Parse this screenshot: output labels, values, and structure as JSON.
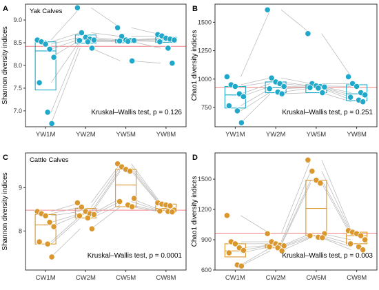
{
  "figure": {
    "background": "#ffffff"
  },
  "chart_data": [
    {
      "panel_label": "A",
      "type": "box",
      "annotation": "Yak Calves",
      "ylabel": "Shannon diversity indices",
      "xlabel": "",
      "categories": [
        "YW1M",
        "YW2M",
        "YW5M",
        "YW8M"
      ],
      "yticks": [
        7.0,
        7.5,
        8.0,
        8.5,
        9.0
      ],
      "ytick_labels": [
        "7.0",
        "7.5",
        "8.0",
        "8.5",
        "9.0"
      ],
      "ylim": [
        6.65,
        9.35
      ],
      "color": "#1FA8C9",
      "reference_line": 8.42,
      "reference_color": "#F08080",
      "boxes": [
        {
          "q1": 7.46,
          "median": 8.32,
          "q3": 8.52,
          "whisker_low": 7.46,
          "whisker_high": 8.56
        },
        {
          "q1": 8.49,
          "median": 8.58,
          "q3": 8.67,
          "whisker_low": 8.49,
          "whisker_high": 8.67
        },
        {
          "q1": 8.5,
          "median": 8.55,
          "q3": 8.57,
          "whisker_low": 8.5,
          "whisker_high": 8.57
        },
        {
          "q1": 8.51,
          "median": 8.56,
          "q3": 8.62,
          "whisker_low": 8.51,
          "whisker_high": 8.62
        }
      ],
      "points": [
        [
          8.56,
          8.52,
          8.47,
          8.36,
          8.18,
          7.62,
          6.97,
          6.72
        ],
        [
          9.27,
          8.72,
          8.62,
          8.58,
          8.56,
          8.55,
          8.52,
          8.38
        ],
        [
          8.83,
          8.64,
          8.56,
          8.55,
          8.55,
          8.54,
          8.53,
          8.1
        ],
        [
          8.68,
          8.65,
          8.6,
          8.58,
          8.56,
          8.52,
          8.38,
          8.05
        ]
      ],
      "stat_text": "Kruskal–Wallis test, p = 0.126"
    },
    {
      "panel_label": "B",
      "type": "box",
      "annotation": "",
      "ylabel": "Chao1 diversity indices",
      "xlabel": "",
      "categories": [
        "YW1M",
        "YW2M",
        "YW5M",
        "YW8M"
      ],
      "yticks": [
        750,
        1000,
        1250,
        1500
      ],
      "ytick_labels": [
        "750",
        "1000",
        "1250",
        "1500"
      ],
      "ylim": [
        580,
        1660
      ],
      "color": "#1FA8C9",
      "reference_line": 925,
      "reference_color": "#F08080",
      "boxes": [
        {
          "q1": 745,
          "median": 860,
          "q3": 935,
          "whisker_low": 745,
          "whisker_high": 935
        },
        {
          "q1": 880,
          "median": 925,
          "q3": 975,
          "whisker_low": 880,
          "whisker_high": 975
        },
        {
          "q1": 880,
          "median": 930,
          "q3": 950,
          "whisker_low": 880,
          "whisker_high": 950
        },
        {
          "q1": 810,
          "median": 870,
          "q3": 950,
          "whisker_low": 810,
          "whisker_high": 950
        }
      ],
      "points": [
        [
          1020,
          950,
          935,
          870,
          845,
          765,
          720,
          615
        ],
        [
          1610,
          1010,
          975,
          960,
          935,
          915,
          885,
          870
        ],
        [
          1400,
          960,
          940,
          935,
          930,
          925,
          920,
          880
        ],
        [
          1020,
          960,
          935,
          880,
          860,
          840,
          815,
          800
        ]
      ],
      "stat_text": "Kruskal–Wallis test, p = 0.251"
    },
    {
      "panel_label": "C",
      "type": "box",
      "annotation": "Cattle Calves",
      "ylabel": "Shannon diversity indices",
      "xlabel": "",
      "categories": [
        "CW1M",
        "CW2M",
        "CW5M",
        "CW8M"
      ],
      "yticks": [
        8,
        9
      ],
      "ytick_labels": [
        "8",
        "9"
      ],
      "ylim": [
        7.1,
        9.8
      ],
      "color": "#D9972E",
      "reference_line": 8.48,
      "reference_color": "#F08080",
      "boxes": [
        {
          "q1": 7.7,
          "median": 8.14,
          "q3": 8.38,
          "whisker_low": 7.7,
          "whisker_high": 8.38
        },
        {
          "q1": 8.3,
          "median": 8.39,
          "q3": 8.52,
          "whisker_low": 8.3,
          "whisker_high": 8.52
        },
        {
          "q1": 8.56,
          "median": 9.06,
          "q3": 9.42,
          "whisker_low": 8.56,
          "whisker_high": 9.42
        },
        {
          "q1": 8.48,
          "median": 8.52,
          "q3": 8.62,
          "whisker_low": 8.48,
          "whisker_high": 8.62
        }
      ],
      "points": [
        [
          8.45,
          8.4,
          8.35,
          8.2,
          8.1,
          7.75,
          7.7,
          7.4
        ],
        [
          8.65,
          8.55,
          8.45,
          8.4,
          8.38,
          8.35,
          8.3,
          8.05
        ],
        [
          9.55,
          9.48,
          9.42,
          9.38,
          8.75,
          8.68,
          8.6,
          8.56
        ],
        [
          8.65,
          8.62,
          8.6,
          8.58,
          8.48,
          8.46,
          8.45,
          8.44
        ]
      ],
      "stat_text": "Kruskal–Wallis test, p = 0.0001"
    },
    {
      "panel_label": "D",
      "type": "box",
      "annotation": "",
      "ylabel": "Chao1 diversity indices",
      "xlabel": "",
      "categories": [
        "CW1M",
        "CW2M",
        "CW5M",
        "CW8M"
      ],
      "yticks": [
        600,
        900,
        1200,
        1500
      ],
      "ytick_labels": [
        "600",
        "900",
        "1200",
        "1500"
      ],
      "ylim": [
        600,
        1760
      ],
      "color": "#D9972E",
      "reference_line": 965,
      "reference_color": "#F08080",
      "boxes": [
        {
          "q1": 730,
          "median": 790,
          "q3": 860,
          "whisker_low": 730,
          "whisker_high": 860
        },
        {
          "q1": 820,
          "median": 840,
          "q3": 855,
          "whisker_low": 820,
          "whisker_high": 855
        },
        {
          "q1": 940,
          "median": 1210,
          "q3": 1490,
          "whisker_low": 940,
          "whisker_high": 1490
        },
        {
          "q1": 860,
          "median": 940,
          "q3": 975,
          "whisker_low": 860,
          "whisker_high": 975
        }
      ],
      "points": [
        [
          1140,
          880,
          860,
          820,
          795,
          770,
          650,
          640
        ],
        [
          960,
          880,
          860,
          845,
          840,
          830,
          820,
          790
        ],
        [
          1690,
          1580,
          1490,
          1460,
          960,
          940,
          925,
          920
        ],
        [
          990,
          975,
          960,
          940,
          900,
          860,
          830,
          800
        ]
      ],
      "stat_text": "Kruskal–Wallis test, p = 0.003"
    }
  ]
}
